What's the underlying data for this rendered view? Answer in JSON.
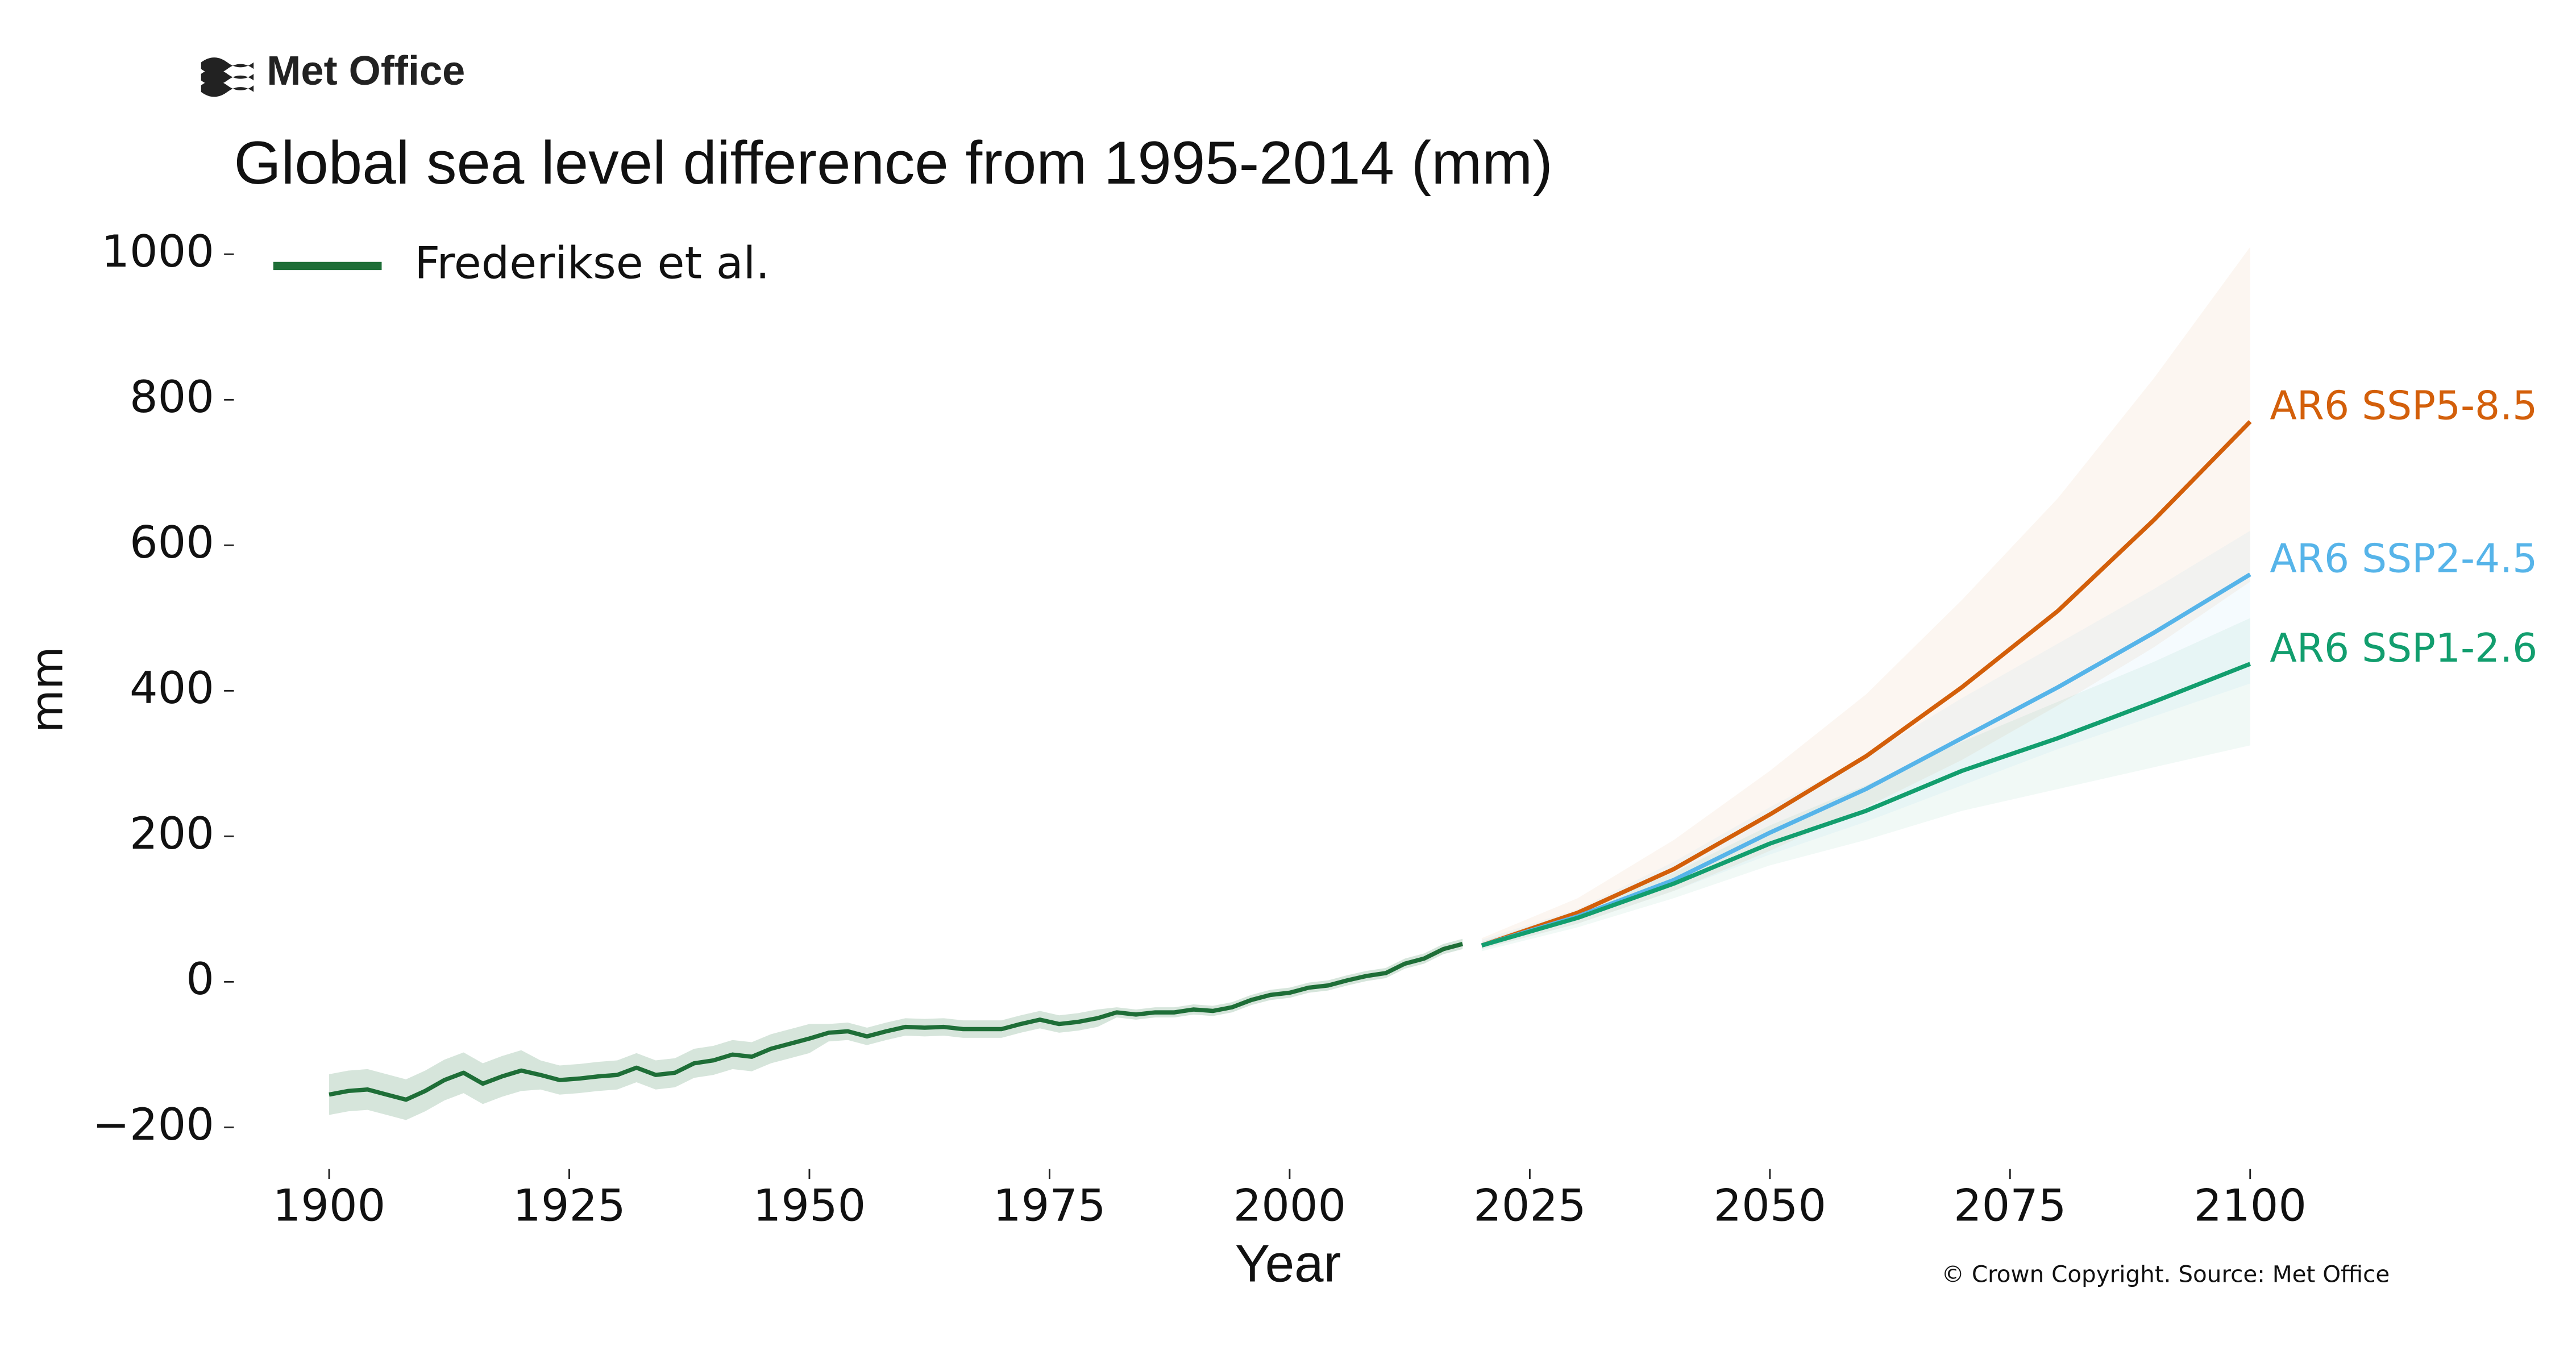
{
  "brand": "Met Office",
  "chart_data": {
    "type": "line",
    "title": "Global sea level difference from 1995-2014 (mm)",
    "xlabel": "Year",
    "ylabel": "mm",
    "source": "© Crown Copyright. Source: Met Office",
    "legend": "upper left",
    "xlim": [
      1885,
      2110
    ],
    "xticks": [
      1900,
      1925,
      1950,
      1975,
      2000,
      2025,
      2050,
      2075,
      2100
    ],
    "ylim": [
      -250,
      1020
    ],
    "yticks": [
      {
        "value": -200,
        "label": "−200"
      },
      0,
      200,
      400,
      600,
      800,
      1000
    ],
    "series": [
      {
        "name": "Frederikse et al.",
        "color": "#1e6e37",
        "direct_label": false,
        "x": [
          1900,
          1902,
          1904,
          1906,
          1908,
          1910,
          1912,
          1914,
          1916,
          1918,
          1920,
          1922,
          1924,
          1926,
          1928,
          1930,
          1932,
          1934,
          1936,
          1938,
          1940,
          1942,
          1944,
          1946,
          1948,
          1950,
          1952,
          1954,
          1956,
          1958,
          1960,
          1962,
          1964,
          1966,
          1968,
          1970,
          1972,
          1974,
          1976,
          1978,
          1980,
          1982,
          1984,
          1986,
          1988,
          1990,
          1992,
          1994,
          1996,
          1998,
          2000,
          2002,
          2004,
          2006,
          2008,
          2010,
          2012,
          2014,
          2016,
          2018
        ],
        "values": [
          -155,
          -150,
          -148,
          -155,
          -162,
          -150,
          -135,
          -125,
          -140,
          -130,
          -122,
          -128,
          -135,
          -133,
          -130,
          -128,
          -118,
          -128,
          -125,
          -112,
          -108,
          -100,
          -103,
          -92,
          -85,
          -78,
          -70,
          -68,
          -75,
          -68,
          -62,
          -63,
          -62,
          -65,
          -65,
          -65,
          -58,
          -52,
          -58,
          -55,
          -50,
          -42,
          -45,
          -42,
          -42,
          -38,
          -40,
          -35,
          -25,
          -18,
          -15,
          -8,
          -5,
          2,
          8,
          12,
          25,
          32,
          45,
          52
        ],
        "lower": [
          -183,
          -178,
          -176,
          -183,
          -190,
          -178,
          -163,
          -153,
          -168,
          -158,
          -150,
          -148,
          -155,
          -153,
          -150,
          -148,
          -138,
          -148,
          -145,
          -132,
          -128,
          -120,
          -123,
          -112,
          -105,
          -98,
          -82,
          -80,
          -87,
          -80,
          -74,
          -75,
          -74,
          -77,
          -77,
          -77,
          -70,
          -64,
          -70,
          -67,
          -62,
          -49,
          -52,
          -49,
          -49,
          -45,
          -47,
          -42,
          -32,
          -25,
          -22,
          -15,
          -12,
          -5,
          1,
          5,
          18,
          25,
          38,
          45
        ],
        "upper": [
          -127,
          -122,
          -120,
          -127,
          -134,
          -122,
          -107,
          -97,
          -112,
          -102,
          -94,
          -108,
          -115,
          -113,
          -110,
          -108,
          -98,
          -108,
          -105,
          -92,
          -88,
          -80,
          -83,
          -72,
          -65,
          -58,
          -58,
          -56,
          -63,
          -56,
          -50,
          -51,
          -50,
          -53,
          -53,
          -53,
          -46,
          -40,
          -46,
          -43,
          -38,
          -35,
          -38,
          -35,
          -35,
          -31,
          -33,
          -28,
          -18,
          -11,
          -8,
          -1,
          2,
          9,
          15,
          19,
          32,
          39,
          52,
          59
        ]
      },
      {
        "name": "AR6 SSP5-8.5",
        "color": "#d35f0a",
        "direct_label": true,
        "x": [
          2020,
          2030,
          2040,
          2050,
          2060,
          2070,
          2080,
          2090,
          2100
        ],
        "values": [
          50,
          95,
          155,
          230,
          310,
          405,
          510,
          635,
          770
        ],
        "lower": [
          45,
          80,
          125,
          180,
          240,
          305,
          380,
          460,
          550
        ],
        "upper": [
          60,
          115,
          195,
          290,
          395,
          525,
          665,
          830,
          1010
        ]
      },
      {
        "name": "AR6 SSP2-4.5",
        "color": "#56b4e9",
        "direct_label": true,
        "x": [
          2020,
          2030,
          2040,
          2050,
          2060,
          2070,
          2080,
          2090,
          2100
        ],
        "values": [
          50,
          90,
          140,
          205,
          265,
          335,
          405,
          480,
          560
        ],
        "lower": [
          45,
          80,
          125,
          175,
          220,
          270,
          320,
          365,
          410
        ],
        "upper": [
          58,
          100,
          165,
          240,
          310,
          390,
          465,
          540,
          620
        ]
      },
      {
        "name": "AR6 SSP1-2.6",
        "color": "#129e6e",
        "direct_label": true,
        "x": [
          2020,
          2030,
          2040,
          2050,
          2060,
          2070,
          2080,
          2090,
          2100
        ],
        "values": [
          50,
          88,
          135,
          190,
          235,
          290,
          335,
          385,
          437
        ],
        "lower": [
          42,
          75,
          115,
          160,
          195,
          235,
          265,
          295,
          325
        ],
        "upper": [
          55,
          98,
          150,
          215,
          270,
          330,
          385,
          440,
          500
        ]
      }
    ]
  }
}
